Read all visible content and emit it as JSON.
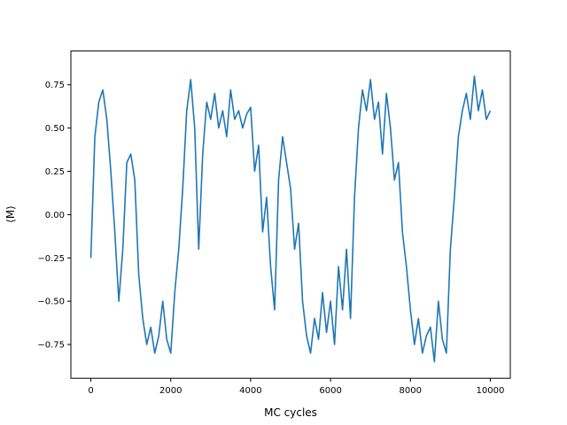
{
  "chart_data": {
    "type": "line",
    "title": "",
    "xlabel": "MC cycles",
    "ylabel": "⟨M⟩",
    "xlim": [
      -500,
      10500
    ],
    "ylim": [
      -0.945,
      0.945
    ],
    "xticks": [
      0,
      2000,
      4000,
      6000,
      8000,
      10000
    ],
    "xtick_labels": [
      "0",
      "2000",
      "4000",
      "6000",
      "8000",
      "10000"
    ],
    "yticks": [
      -0.75,
      -0.5,
      -0.25,
      0.0,
      0.25,
      0.5,
      0.75
    ],
    "ytick_labels": [
      "−0.75",
      "−0.50",
      "−0.25",
      "0.00",
      "0.25",
      "0.50",
      "0.75"
    ],
    "grid": false,
    "series": [
      {
        "color": "#1f77b4",
        "x": [
          0,
          100,
          200,
          300,
          400,
          500,
          600,
          700,
          800,
          900,
          1000,
          1100,
          1200,
          1300,
          1400,
          1500,
          1600,
          1700,
          1800,
          1900,
          2000,
          2100,
          2200,
          2300,
          2400,
          2500,
          2600,
          2700,
          2800,
          2900,
          3000,
          3100,
          3200,
          3300,
          3400,
          3500,
          3600,
          3700,
          3800,
          3900,
          4000,
          4100,
          4200,
          4300,
          4400,
          4500,
          4600,
          4700,
          4800,
          4900,
          5000,
          5100,
          5200,
          5300,
          5400,
          5500,
          5600,
          5700,
          5800,
          5900,
          6000,
          6100,
          6200,
          6300,
          6400,
          6500,
          6600,
          6700,
          6800,
          6900,
          7000,
          7100,
          7200,
          7300,
          7400,
          7500,
          7600,
          7700,
          7800,
          7900,
          8000,
          8100,
          8200,
          8300,
          8400,
          8500,
          8600,
          8700,
          8800,
          8900,
          9000,
          9100,
          9200,
          9300,
          9400,
          9500,
          9600,
          9700,
          9800,
          9900,
          10000
        ],
        "values": [
          -0.25,
          0.45,
          0.65,
          0.72,
          0.55,
          0.25,
          -0.1,
          -0.5,
          -0.2,
          0.3,
          0.35,
          0.2,
          -0.35,
          -0.6,
          -0.75,
          -0.65,
          -0.8,
          -0.7,
          -0.5,
          -0.72,
          -0.8,
          -0.45,
          -0.2,
          0.15,
          0.6,
          0.78,
          0.5,
          -0.2,
          0.35,
          0.65,
          0.55,
          0.7,
          0.5,
          0.6,
          0.45,
          0.72,
          0.55,
          0.6,
          0.5,
          0.58,
          0.62,
          0.25,
          0.4,
          -0.1,
          0.1,
          -0.3,
          -0.55,
          0.2,
          0.45,
          0.3,
          0.15,
          -0.2,
          -0.05,
          -0.5,
          -0.7,
          -0.8,
          -0.6,
          -0.72,
          -0.45,
          -0.68,
          -0.5,
          -0.75,
          -0.3,
          -0.55,
          -0.2,
          -0.6,
          0.1,
          0.5,
          0.72,
          0.6,
          0.78,
          0.55,
          0.65,
          0.35,
          0.7,
          0.5,
          0.2,
          0.3,
          -0.1,
          -0.3,
          -0.55,
          -0.75,
          -0.6,
          -0.8,
          -0.7,
          -0.65,
          -0.85,
          -0.5,
          -0.72,
          -0.8,
          -0.2,
          0.1,
          0.45,
          0.6,
          0.7,
          0.55,
          0.8,
          0.6,
          0.72,
          0.55,
          0.6
        ]
      }
    ]
  }
}
